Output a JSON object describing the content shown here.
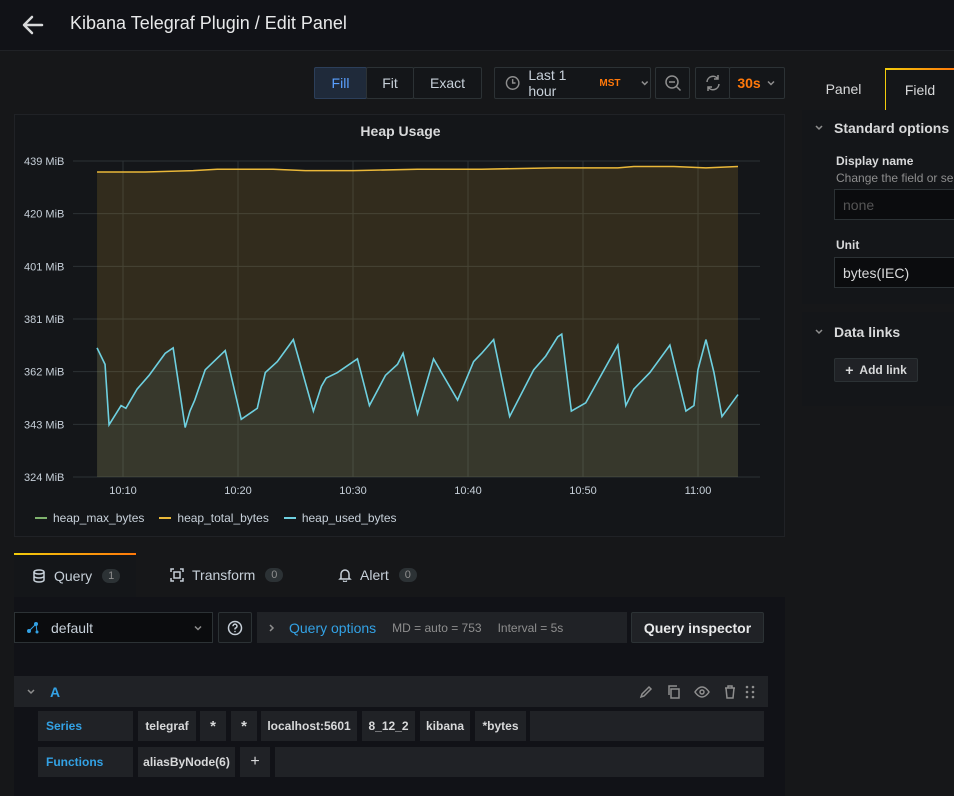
{
  "header": {
    "title": "Kibana Telegraf Plugin / Edit Panel"
  },
  "toolbar": {
    "modes": [
      "Fill",
      "Fit",
      "Exact"
    ],
    "time_range": "Last 1 hour",
    "timezone": "MST",
    "refresh": "30s"
  },
  "panel": {
    "title": "Heap Usage"
  },
  "chart_data": {
    "type": "line",
    "title": "Heap Usage",
    "y_ticks": [
      "439 MiB",
      "420 MiB",
      "401 MiB",
      "381 MiB",
      "362 MiB",
      "343 MiB",
      "324 MiB"
    ],
    "x_ticks": [
      "10:10",
      "10:20",
      "10:30",
      "10:40",
      "10:50",
      "11:00"
    ],
    "ylim": [
      324,
      439
    ],
    "grid": true,
    "legend_placement": "bottom-left",
    "series": [
      {
        "name": "heap_max_bytes",
        "color": "#7eb26d",
        "values": []
      },
      {
        "name": "heap_total_bytes",
        "color": "#eab839",
        "x": [
          0,
          6,
          12,
          15,
          22,
          26,
          32,
          40,
          48,
          57,
          65,
          67,
          72,
          76,
          80
        ],
        "values": [
          435,
          435,
          435.5,
          436,
          436,
          435.5,
          435.5,
          436,
          436,
          436.5,
          436.5,
          437,
          437,
          436.5,
          437
        ]
      },
      {
        "name": "heap_used_bytes",
        "color": "#6ed0e0",
        "x": [
          0,
          1,
          1.5,
          3,
          3.6,
          4.2,
          5,
          6.5,
          8.5,
          9.5,
          11,
          11.6,
          12.2,
          13.5,
          16,
          18,
          20,
          21,
          22.5,
          24.5,
          27,
          28,
          28.6,
          30,
          32.5,
          34,
          36,
          37.5,
          38.2,
          40,
          42,
          45,
          47,
          48,
          49.5,
          51.5,
          54.5,
          56,
          57.5,
          58,
          59.2,
          61,
          65,
          66,
          67,
          69,
          71.5,
          73.5,
          74.5,
          75,
          76,
          77,
          78,
          80
        ],
        "values": [
          371,
          365,
          343,
          350,
          349,
          352,
          356,
          361,
          369,
          371,
          342,
          348,
          352,
          363,
          370,
          345,
          349,
          362,
          366,
          374,
          348,
          357,
          360,
          362,
          367,
          350,
          361,
          365,
          369,
          347,
          367,
          352,
          366,
          369,
          374,
          346,
          363,
          368,
          375,
          376,
          348,
          351,
          372,
          350,
          356,
          362,
          372,
          348,
          350,
          363,
          374,
          362,
          346,
          354
        ]
      }
    ]
  },
  "tabs": [
    {
      "label": "Query",
      "count": "1"
    },
    {
      "label": "Transform",
      "count": "0"
    },
    {
      "label": "Alert",
      "count": "0"
    }
  ],
  "query": {
    "datasource": "default",
    "options_label": "Query options",
    "md": "MD = auto = 753",
    "interval": "Interval = 5s",
    "inspector": "Query inspector",
    "ref_id": "A",
    "series_label": "Series",
    "series": [
      "telegraf",
      "*",
      "*",
      "localhost:5601",
      "8_12_2",
      "kibana",
      "*bytes"
    ],
    "functions_label": "Functions",
    "functions": [
      "aliasByNode(6)"
    ],
    "add": "+"
  },
  "right": {
    "tabs": [
      "Panel",
      "Field"
    ],
    "standard_options": "Standard options",
    "display_name": "Display name",
    "display_name_desc": "Change the field or ser",
    "display_name_placeholder": "none",
    "unit_label": "Unit",
    "unit_value": "bytes(IEC)",
    "data_links": "Data links",
    "add_link": "Add link"
  }
}
